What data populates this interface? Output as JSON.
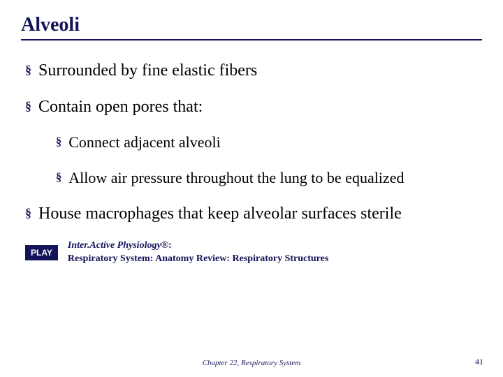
{
  "colors": {
    "brand": "#14145a",
    "text": "#000000",
    "background": "#ffffff"
  },
  "title": "Alveoli",
  "bullets": {
    "b1": "Surrounded by fine elastic fibers",
    "b2": "Contain open pores that:",
    "b2a": "Connect adjacent alveoli",
    "b2b": "Allow air pressure throughout the lung to be equalized",
    "b3": "House macrophages that keep alveolar surfaces sterile"
  },
  "play": {
    "label": "PLAY",
    "caption_line1_italic": "Inter.Active Physiology",
    "caption_line1_reg": "®",
    "caption_line1_tail": ":",
    "caption_line2": "Respiratory System: Anatomy Review: Respiratory Structures"
  },
  "footer": "Chapter 22, Respiratory System",
  "page_number": "41",
  "bullet_glyph": "§"
}
